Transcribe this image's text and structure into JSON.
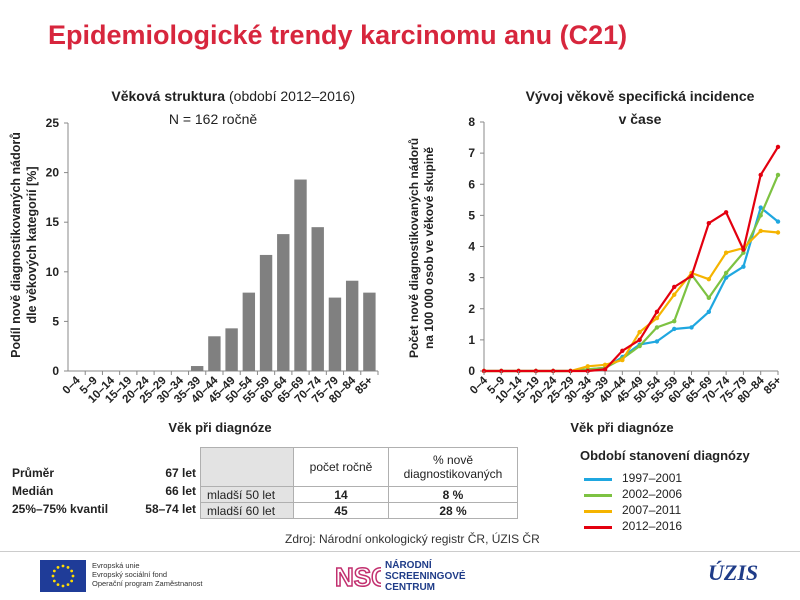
{
  "title": "Epidemiologické trendy karcinomu anu (C21)",
  "chart_data": [
    {
      "type": "bar",
      "title": "Věková struktura",
      "title_suffix": "(období 2012–2016)",
      "subtitle": "N = 162 ročně",
      "xlabel": "Věk při diagnóze",
      "ylabel_lines": [
        "Podíl nově diagnostikovaných nádorů",
        "dle věkových kategorií [%]"
      ],
      "ylim": [
        0,
        25
      ],
      "yticks": [
        0,
        5,
        10,
        15,
        20,
        25
      ],
      "categories": [
        "0–4",
        "5–9",
        "10–14",
        "15–19",
        "20–24",
        "25–29",
        "30–34",
        "35–39",
        "40–44",
        "45–49",
        "50–54",
        "55–59",
        "60–64",
        "65–69",
        "70–74",
        "75–79",
        "80–84",
        "85+"
      ],
      "values": [
        0,
        0,
        0,
        0,
        0,
        0,
        0,
        0.5,
        3.5,
        4.3,
        7.9,
        11.7,
        13.8,
        19.3,
        14.5,
        7.4,
        9.1,
        7.9
      ],
      "bar_color": "#808080",
      "grid": false
    },
    {
      "type": "line",
      "title_lines": [
        "Vývoj věkově specifická incidence",
        "v čase"
      ],
      "xlabel": "Věk při diagnóze",
      "ylabel_lines": [
        "Počet nově diagnostikovaných nádorů",
        "na 100 000 osob ve věkové skupině"
      ],
      "ylim": [
        0,
        8
      ],
      "yticks": [
        0,
        1,
        2,
        3,
        4,
        5,
        6,
        7,
        8
      ],
      "categories": [
        "0–4",
        "5–9",
        "10–14",
        "15–19",
        "20–24",
        "25–29",
        "30–34",
        "35–39",
        "40–44",
        "45–49",
        "50–54",
        "55–59",
        "60–64",
        "65–69",
        "70–74",
        "75–79",
        "80–84",
        "85+"
      ],
      "legend_title": "Období stanovení diagnózy",
      "legend_position": "bottom-right",
      "grid": false,
      "series": [
        {
          "name": "1997–2001",
          "color": "#1fa7e0",
          "values": [
            0,
            0,
            0,
            0,
            0,
            0,
            0.05,
            0.1,
            0.45,
            0.85,
            0.95,
            1.35,
            1.4,
            1.9,
            3.0,
            3.35,
            5.25,
            4.8
          ]
        },
        {
          "name": "2002–2006",
          "color": "#7dc242",
          "values": [
            0,
            0,
            0,
            0,
            0,
            0,
            0.05,
            0.1,
            0.4,
            0.8,
            1.4,
            1.6,
            3.1,
            2.35,
            3.15,
            3.8,
            5.0,
            6.3
          ]
        },
        {
          "name": "2007–2011",
          "color": "#f5b400",
          "values": [
            0,
            0,
            0,
            0,
            0,
            0,
            0.15,
            0.2,
            0.35,
            1.25,
            1.7,
            2.45,
            3.15,
            2.95,
            3.8,
            3.95,
            4.5,
            4.45
          ]
        },
        {
          "name": "2012–2016",
          "color": "#e3000f",
          "values": [
            0,
            0,
            0,
            0,
            0,
            0,
            0,
            0.05,
            0.65,
            1.0,
            1.9,
            2.7,
            3.05,
            4.75,
            5.1,
            3.9,
            6.3,
            7.2
          ]
        }
      ]
    }
  ],
  "stats": {
    "rows": [
      {
        "label": "Průměr",
        "value": "67 let"
      },
      {
        "label": "Medián",
        "value": "66 let"
      },
      {
        "label": "25%–75% kvantil",
        "value": "58–74 let"
      }
    ]
  },
  "age_table": {
    "col1_header": "počet ročně",
    "col2_header": "% nově diagnostikovaných",
    "rows": [
      {
        "label": "mladší 50 let",
        "count": "14",
        "pct": "8 %"
      },
      {
        "label": "mladší 60 let",
        "count": "45",
        "pct": "28 %"
      }
    ]
  },
  "source": "Zdroj: Národní onkologický registr ČR, ÚZIS ČR",
  "footer": {
    "eu_lines": [
      "Evropská unie",
      "Evropský sociální fond",
      "Operační program Zaměstnanost"
    ],
    "nsc_abbr": "NSC",
    "nsc_lines": [
      "NÁRODNÍ",
      "SCREENINGOVÉ",
      "CENTRUM"
    ],
    "uzis": "ÚZIS"
  }
}
